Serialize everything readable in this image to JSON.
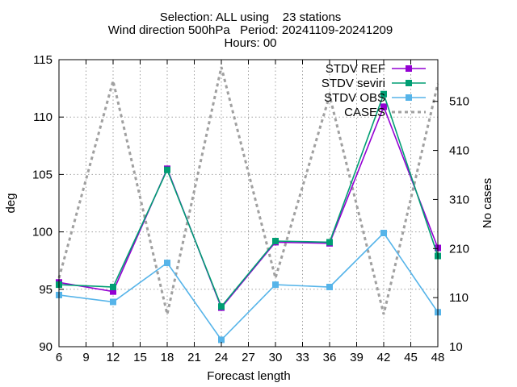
{
  "chart_data": {
    "type": "line",
    "title_lines": [
      "Selection: ALL using    23 stations",
      "Wind direction 500hPa   Period: 20241109-20241209",
      "Hours: 00"
    ],
    "xlabel": "Forecast length",
    "ylabel": "deg",
    "y2label": "No cases",
    "xlim": [
      6,
      48
    ],
    "xticks": [
      6,
      9,
      12,
      15,
      18,
      21,
      24,
      27,
      30,
      33,
      36,
      39,
      42,
      45,
      48
    ],
    "ylim": [
      90,
      115
    ],
    "yticks": [
      90,
      95,
      100,
      105,
      110,
      115
    ],
    "y2lim": [
      10,
      595
    ],
    "y2ticks": [
      10,
      110,
      210,
      310,
      410,
      510
    ],
    "grid": true,
    "legend_position": "top-right",
    "series": [
      {
        "name": "STDV REF",
        "axis": "left",
        "color": "#9400d3",
        "marker": "square",
        "x": [
          6,
          12,
          18,
          24,
          30,
          36,
          42,
          48
        ],
        "y": [
          95.6,
          94.8,
          105.5,
          93.4,
          99.1,
          99.0,
          110.9,
          98.6
        ]
      },
      {
        "name": "STDV seviri",
        "axis": "left",
        "color": "#009e73",
        "marker": "square",
        "x": [
          6,
          12,
          18,
          24,
          30,
          36,
          42,
          48
        ],
        "y": [
          95.4,
          95.2,
          105.4,
          93.5,
          99.2,
          99.1,
          112.0,
          97.9
        ]
      },
      {
        "name": "STDV OBS",
        "axis": "left",
        "color": "#56b4e9",
        "marker": "square",
        "x": [
          6,
          12,
          18,
          24,
          30,
          36,
          42,
          48
        ],
        "y": [
          94.5,
          93.9,
          97.3,
          90.6,
          95.4,
          95.2,
          99.9,
          93.0
        ]
      },
      {
        "name": "CASES",
        "axis": "right",
        "color": "#a0a0a0",
        "dashed": true,
        "x": [
          6,
          12,
          18,
          24,
          30,
          36,
          42,
          48
        ],
        "y": [
          150,
          552,
          76,
          580,
          150,
          522,
          76,
          546
        ]
      }
    ]
  }
}
